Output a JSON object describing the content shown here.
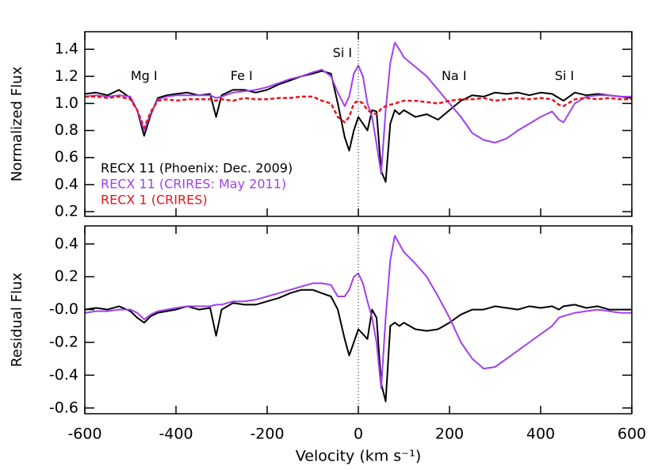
{
  "chart_data": [
    {
      "type": "line",
      "ylabel": "Normalized Flux",
      "xlim": [
        -600,
        600
      ],
      "xticks": [
        -600,
        -400,
        -200,
        0,
        200,
        400,
        600
      ],
      "show_xtick_labels": false,
      "ylim": [
        0.165,
        1.53
      ],
      "yticks": [
        0.2,
        0.4,
        0.6,
        0.8,
        {
          "value": 1.0,
          "label": "1.0"
        },
        1.2,
        1.4
      ],
      "vline": 0,
      "legend": "lower left",
      "annotations": [
        {
          "text": "Mg I",
          "x": -470,
          "y": 1.2
        },
        {
          "text": "Fe I",
          "x": -256,
          "y": 1.2
        },
        {
          "text": "Si I",
          "x": -35,
          "y": 1.37
        },
        {
          "text": "Na I",
          "x": 210,
          "y": 1.2
        },
        {
          "text": "Si I",
          "x": 452,
          "y": 1.2
        }
      ],
      "x": [
        -600,
        -575,
        -550,
        -525,
        -500,
        -485,
        -470,
        -455,
        -440,
        -420,
        -400,
        -375,
        -350,
        -325,
        -312,
        -300,
        -275,
        -250,
        -225,
        -200,
        -175,
        -150,
        -125,
        -100,
        -80,
        -60,
        -45,
        -30,
        -20,
        -10,
        0,
        10,
        20,
        30,
        40,
        50,
        60,
        70,
        80,
        90,
        100,
        125,
        150,
        175,
        200,
        225,
        250,
        275,
        300,
        325,
        350,
        375,
        400,
        425,
        440,
        450,
        475,
        500,
        525,
        550,
        575,
        600
      ],
      "series": [
        {
          "name": "RECX 11 (Phoenix: Dec. 2009)",
          "color": "#000000",
          "dash": false,
          "values": [
            1.07,
            1.08,
            1.06,
            1.1,
            1.04,
            0.95,
            0.76,
            0.92,
            1.04,
            1.06,
            1.07,
            1.08,
            1.06,
            1.07,
            0.9,
            1.06,
            1.1,
            1.1,
            1.08,
            1.1,
            1.14,
            1.17,
            1.2,
            1.22,
            1.24,
            1.22,
            1.0,
            0.75,
            0.65,
            0.8,
            0.9,
            0.85,
            0.8,
            0.95,
            0.94,
            0.5,
            0.42,
            0.85,
            0.95,
            0.92,
            0.95,
            0.9,
            0.92,
            0.88,
            0.95,
            1.02,
            1.06,
            1.05,
            1.08,
            1.07,
            1.08,
            1.06,
            1.08,
            1.07,
            1.04,
            1.02,
            1.08,
            1.06,
            1.07,
            1.06,
            1.05,
            1.04
          ]
        },
        {
          "name": "RECX 11 (CRIRES: May 2011)",
          "color": "#a040f0",
          "dash": false,
          "values": [
            1.05,
            1.06,
            1.05,
            1.06,
            1.05,
            0.95,
            0.8,
            0.93,
            1.03,
            1.05,
            1.06,
            1.06,
            1.06,
            1.06,
            1.04,
            1.05,
            1.08,
            1.09,
            1.1,
            1.12,
            1.15,
            1.18,
            1.2,
            1.23,
            1.25,
            1.2,
            1.08,
            0.98,
            1.05,
            1.22,
            1.28,
            1.2,
            1.0,
            0.9,
            0.7,
            0.48,
            0.95,
            1.3,
            1.45,
            1.4,
            1.34,
            1.27,
            1.2,
            1.1,
            1.0,
            0.9,
            0.78,
            0.73,
            0.71,
            0.74,
            0.8,
            0.85,
            0.9,
            0.94,
            0.88,
            0.86,
            1.0,
            1.05,
            1.06,
            1.06,
            1.05,
            1.05
          ]
        },
        {
          "name": "RECX 1 (CRIRES)",
          "color": "#e8141c",
          "dash": true,
          "values": [
            1.05,
            1.05,
            1.04,
            1.05,
            1.03,
            0.95,
            0.82,
            0.94,
            1.02,
            1.03,
            1.02,
            1.03,
            1.03,
            1.03,
            1.02,
            1.03,
            1.02,
            1.04,
            1.03,
            1.03,
            1.04,
            1.04,
            1.05,
            1.05,
            1.02,
            1.0,
            0.9,
            0.86,
            0.9,
            1.0,
            1.02,
            1.0,
            0.95,
            0.93,
            0.92,
            0.96,
            0.98,
            0.99,
            1.0,
            1.01,
            1.02,
            1.02,
            1.01,
            1.0,
            1.02,
            1.03,
            1.03,
            1.04,
            1.02,
            1.03,
            1.04,
            1.03,
            1.04,
            1.03,
            0.99,
            0.98,
            1.03,
            1.04,
            1.03,
            1.04,
            1.03,
            1.03
          ]
        }
      ]
    },
    {
      "type": "line",
      "ylabel": "Residual Flux",
      "xlabel": "Velocity (km s⁻¹)",
      "xlim": [
        -600,
        600
      ],
      "xticks": [
        -600,
        -400,
        -200,
        0,
        200,
        400,
        600
      ],
      "show_xtick_labels": true,
      "ylim": [
        -0.635,
        0.51
      ],
      "yticks": [
        -0.6,
        -0.4,
        -0.2,
        {
          "value": 0,
          "label": "-0.0"
        },
        0.2,
        0.4
      ],
      "vline": 0,
      "x": [
        -600,
        -575,
        -550,
        -525,
        -500,
        -485,
        -470,
        -455,
        -440,
        -420,
        -400,
        -375,
        -350,
        -325,
        -312,
        -300,
        -275,
        -250,
        -225,
        -200,
        -175,
        -150,
        -125,
        -100,
        -80,
        -60,
        -45,
        -30,
        -20,
        -10,
        0,
        10,
        20,
        30,
        40,
        50,
        60,
        70,
        80,
        90,
        100,
        125,
        150,
        175,
        200,
        225,
        250,
        275,
        300,
        325,
        350,
        375,
        400,
        425,
        440,
        450,
        475,
        500,
        525,
        550,
        575,
        600
      ],
      "series": [
        {
          "color": "#000000",
          "dash": false,
          "values": [
            0.0,
            0.01,
            0.0,
            0.02,
            -0.01,
            -0.05,
            -0.08,
            -0.04,
            -0.02,
            -0.01,
            0.0,
            0.02,
            0.0,
            0.01,
            -0.16,
            0.0,
            0.04,
            0.03,
            0.03,
            0.05,
            0.07,
            0.1,
            0.12,
            0.12,
            0.1,
            0.08,
            0.0,
            -0.18,
            -0.28,
            -0.2,
            -0.12,
            -0.15,
            -0.18,
            0.0,
            -0.05,
            -0.45,
            -0.56,
            -0.1,
            -0.08,
            -0.1,
            -0.08,
            -0.12,
            -0.13,
            -0.12,
            -0.08,
            -0.03,
            0.0,
            0.0,
            0.02,
            0.01,
            0.0,
            0.02,
            0.01,
            0.02,
            0.0,
            0.02,
            0.03,
            0.01,
            0.02,
            0.0,
            0.0,
            0.0
          ]
        },
        {
          "color": "#a040f0",
          "dash": false,
          "values": [
            -0.02,
            -0.01,
            -0.01,
            0.0,
            0.0,
            -0.02,
            -0.06,
            -0.03,
            -0.01,
            0.0,
            0.01,
            0.02,
            0.02,
            0.02,
            0.03,
            0.03,
            0.05,
            0.05,
            0.06,
            0.08,
            0.1,
            0.12,
            0.14,
            0.16,
            0.16,
            0.15,
            0.08,
            0.08,
            0.12,
            0.2,
            0.22,
            0.16,
            0.05,
            -0.05,
            -0.2,
            -0.48,
            -0.05,
            0.3,
            0.45,
            0.4,
            0.35,
            0.28,
            0.2,
            0.08,
            -0.05,
            -0.2,
            -0.3,
            -0.36,
            -0.35,
            -0.3,
            -0.25,
            -0.2,
            -0.15,
            -0.1,
            -0.05,
            -0.04,
            -0.02,
            -0.01,
            0.0,
            -0.01,
            -0.02,
            -0.02
          ]
        }
      ]
    }
  ]
}
